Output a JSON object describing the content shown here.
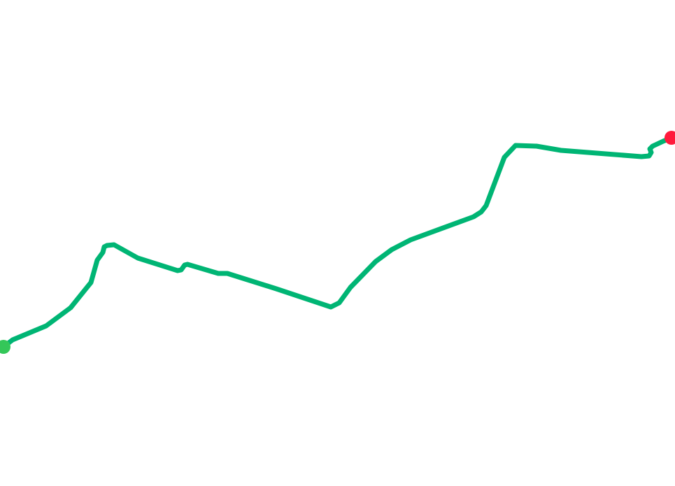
{
  "map": {
    "route": {
      "color": "#00b574"
    },
    "start_marker": {
      "icon": "start-point-icon",
      "color": "#34c759"
    },
    "end_marker": {
      "icon": "end-point-icon",
      "color": "#ff1a3c"
    }
  }
}
